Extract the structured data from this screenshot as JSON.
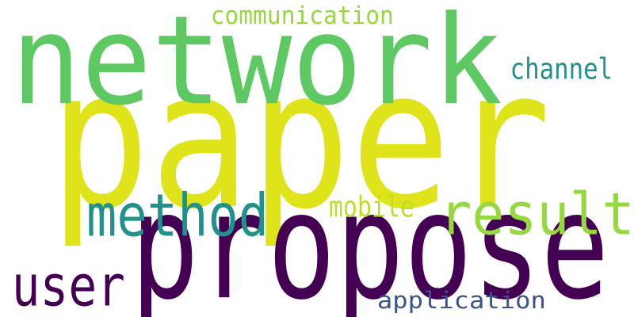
{
  "word_cloud": {
    "background": "#ffffff",
    "words": [
      {
        "id": "paper",
        "text": "paper",
        "color": "#dfe319"
      },
      {
        "id": "network",
        "text": "network",
        "color": "#5ec962"
      },
      {
        "id": "propose",
        "text": "propose",
        "color": "#440154"
      },
      {
        "id": "result",
        "text": "result",
        "color": "#95d840"
      },
      {
        "id": "method",
        "text": "method",
        "color": "#21918c"
      },
      {
        "id": "user",
        "text": "user",
        "color": "#440154"
      },
      {
        "id": "application",
        "text": "application",
        "color": "#3b528b"
      },
      {
        "id": "communication",
        "text": "communication",
        "color": "#95d840"
      },
      {
        "id": "channel",
        "text": "channel",
        "color": "#21918c"
      },
      {
        "id": "mobile",
        "text": "mobile",
        "color": "#bddf26"
      }
    ]
  }
}
